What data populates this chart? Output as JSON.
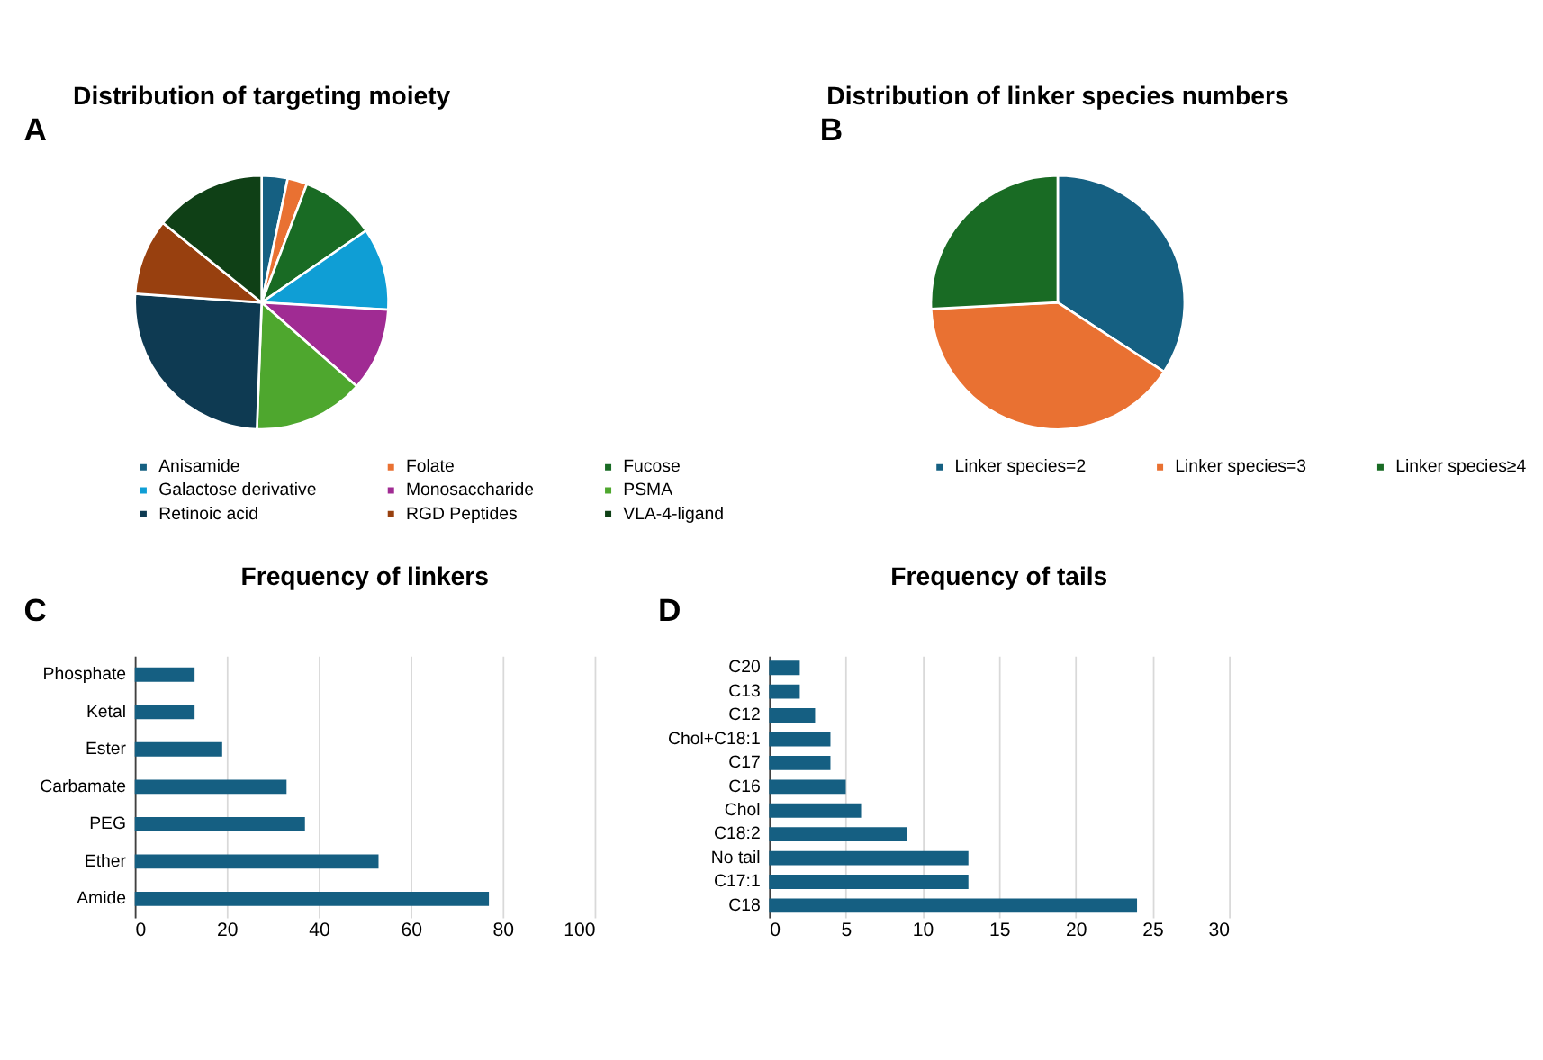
{
  "chart_data": [
    {
      "type": "pie",
      "title": "Distribution of targeting moiety",
      "annotations": [
        "A"
      ],
      "legend": "bottom",
      "categories": [
        "Anisamide",
        "Folate",
        "Fucose",
        "Galactose derivative",
        "Monosaccharide",
        "PSMA",
        "Retinoic acid",
        "RGD Peptides",
        "VLA-4-ligand"
      ],
      "values": [
        3.3,
        2.5,
        9.6,
        10.5,
        10.6,
        14.1,
        25.5,
        9.7,
        14.2
      ],
      "colors": [
        "#156082",
        "#e97132",
        "#196b24",
        "#0f9ed5",
        "#a02b93",
        "#4ea72e",
        "#0e3a52",
        "#98400f",
        "#0f4016"
      ]
    },
    {
      "type": "pie",
      "title": "Distribution of linker species numbers",
      "annotations": [
        "B"
      ],
      "legend": "bottom",
      "categories": [
        "Linker species=2",
        "Linker species=3",
        "Linker species≥4"
      ],
      "values": [
        34.2,
        40.0,
        25.8
      ],
      "colors": [
        "#156082",
        "#e97132",
        "#196b24"
      ]
    },
    {
      "type": "bar",
      "orientation": "horizontal",
      "title": "Frequency of linkers",
      "annotations": [
        "C"
      ],
      "grid": "x",
      "categories": [
        "Phosphate",
        "Ketal",
        "Ester",
        "Carbamate",
        "PEG",
        "Ether",
        "Amide"
      ],
      "values": [
        13,
        13,
        19,
        33,
        37,
        53,
        77
      ],
      "color": "#155f82",
      "xlim": [
        0,
        100
      ],
      "xticks": [
        0,
        20,
        40,
        60,
        80,
        100
      ]
    },
    {
      "type": "bar",
      "orientation": "horizontal",
      "title": "Frequency of tails",
      "annotations": [
        "D"
      ],
      "grid": "x",
      "categories": [
        "C20",
        "C13",
        "C12",
        "Chol+C18:1",
        "C17",
        "C16",
        "Chol",
        "C18:2",
        "No tail",
        "C17:1",
        "C18"
      ],
      "values": [
        2,
        2,
        3,
        4,
        4,
        5,
        6,
        9,
        13,
        13,
        24
      ],
      "color": "#155f82",
      "xlim": [
        0,
        30
      ],
      "xticks": [
        0,
        5,
        10,
        15,
        20,
        25,
        30
      ]
    }
  ]
}
